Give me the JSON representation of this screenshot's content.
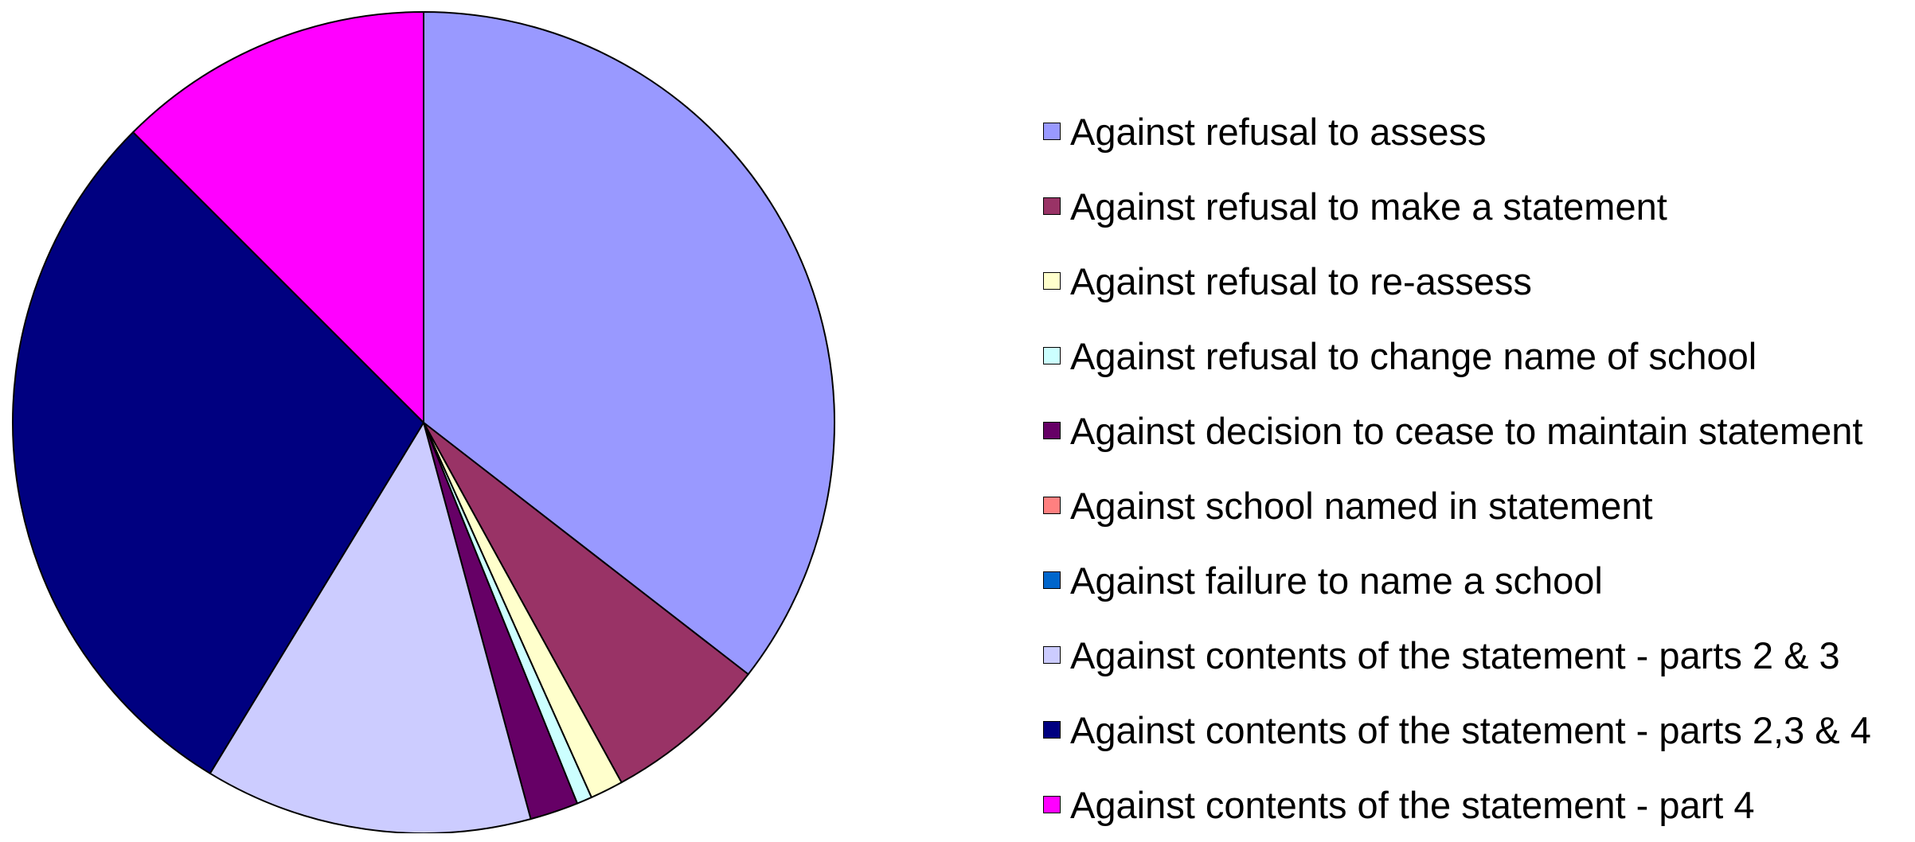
{
  "chart_data": {
    "type": "pie",
    "title": "",
    "legend_position": "right",
    "start_angle": "top",
    "direction": "clockwise",
    "slices": [
      {
        "label": "Against refusal to assess",
        "value": 35.5,
        "color": "#9999FF"
      },
      {
        "label": "Against refusal to make a statement",
        "value": 6.5,
        "color": "#993366"
      },
      {
        "label": "Against refusal to re-assess",
        "value": 1.3,
        "color": "#FFFFCC"
      },
      {
        "label": "Against refusal to change name of school",
        "value": 0.6,
        "color": "#CCFFFF"
      },
      {
        "label": "Against decision to cease to maintain statement",
        "value": 1.9,
        "color": "#660066"
      },
      {
        "label": "Against school named in statement",
        "value": 0.0,
        "color": "#FF8080"
      },
      {
        "label": "Against failure to name a school",
        "value": 0.0,
        "color": "#0066CC"
      },
      {
        "label": "Against contents of the statement - parts 2 & 3",
        "value": 12.9,
        "color": "#CCCCFF"
      },
      {
        "label": "Against contents of the statement - parts 2,3 & 4",
        "value": 28.8,
        "color": "#000080"
      },
      {
        "label": "Against contents of the statement - part 4",
        "value": 12.5,
        "color": "#FF00FF"
      }
    ]
  }
}
